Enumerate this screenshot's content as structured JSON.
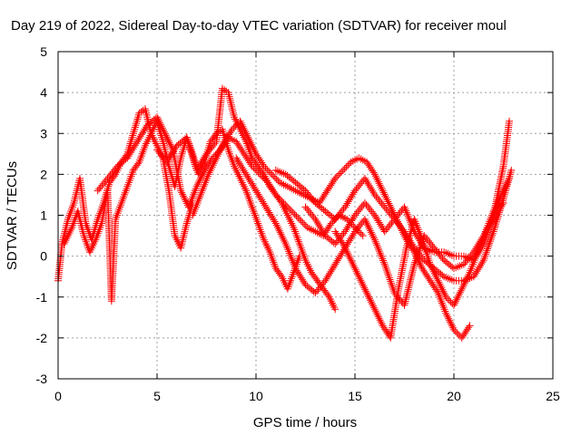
{
  "chart_data": {
    "type": "scatter",
    "title": "Day 219 of 2022, Sidereal Day-to-day VTEC variation (SDTVAR) for receiver moul",
    "xlabel": "GPS time / hours",
    "ylabel": "SDTVAR / TECUs",
    "xlim": [
      0,
      25
    ],
    "ylim": [
      -3,
      5
    ],
    "xticks": [
      "0",
      "5",
      "10",
      "15",
      "20",
      "25"
    ],
    "yticks": [
      "-3",
      "-2",
      "-1",
      "0",
      "1",
      "2",
      "3",
      "4",
      "5"
    ],
    "grid": true,
    "marker": "+",
    "series": [
      {
        "name": "track-1",
        "color": "#ff0000",
        "x": [
          0.0,
          0.2,
          0.5,
          0.8,
          1.1,
          1.4,
          1.7,
          2.0,
          2.3,
          2.6,
          2.9,
          3.2,
          3.5,
          3.8,
          4.1,
          4.4,
          4.7,
          5.0,
          5.3,
          5.6,
          5.9,
          6.2,
          6.5,
          6.8
        ],
        "y": [
          -0.6,
          0.3,
          0.9,
          1.3,
          1.9,
          0.8,
          0.4,
          0.9,
          1.3,
          1.8,
          2.0,
          2.3,
          2.5,
          3.0,
          3.5,
          3.6,
          3.0,
          2.7,
          2.4,
          1.6,
          0.5,
          0.2,
          0.8,
          1.3
        ]
      },
      {
        "name": "track-2",
        "color": "#ff0000",
        "x": [
          0.3,
          0.7,
          1.0,
          1.3,
          1.6,
          1.9,
          2.2,
          2.5,
          2.7,
          2.9,
          3.2,
          3.5,
          3.8,
          4.1,
          4.4,
          4.7,
          5.0,
          5.3,
          5.6,
          5.9,
          6.2,
          6.5,
          6.8,
          7.1,
          7.4,
          7.7,
          8.0,
          8.3,
          8.6,
          8.9,
          9.2,
          9.5,
          9.8,
          10.1,
          10.4,
          10.7,
          11.0,
          11.3,
          11.6,
          11.9,
          12.2
        ],
        "y": [
          0.3,
          0.7,
          1.1,
          0.5,
          0.1,
          0.4,
          0.8,
          1.6,
          -1.1,
          0.9,
          1.3,
          1.7,
          2.1,
          2.3,
          2.7,
          3.0,
          3.3,
          2.8,
          2.2,
          1.7,
          2.4,
          2.9,
          2.5,
          2.0,
          2.3,
          2.8,
          3.0,
          3.1,
          2.6,
          2.2,
          1.9,
          1.6,
          1.2,
          0.8,
          0.4,
          0.1,
          -0.3,
          -0.5,
          -0.8,
          -0.4,
          0.0
        ]
      },
      {
        "name": "track-3",
        "color": "#ff0000",
        "x": [
          2.0,
          2.5,
          3.0,
          3.5,
          4.0,
          4.5,
          5.0,
          5.4,
          5.8,
          6.2,
          6.6,
          7.0,
          7.4,
          7.8,
          8.2,
          8.6,
          9.0,
          9.4,
          9.8,
          10.2,
          10.6,
          11.0,
          11.4,
          11.8,
          12.2,
          12.6,
          13.0,
          13.4,
          13.8,
          14.2,
          14.6,
          15.0,
          15.4
        ],
        "y": [
          1.6,
          1.9,
          2.2,
          2.4,
          2.8,
          3.2,
          3.4,
          3.0,
          2.6,
          1.6,
          1.2,
          1.7,
          2.1,
          2.4,
          2.6,
          2.9,
          2.8,
          2.5,
          2.2,
          2.0,
          1.8,
          1.5,
          1.3,
          1.1,
          0.9,
          0.7,
          0.6,
          0.5,
          0.8,
          1.0,
          0.9,
          0.7,
          0.5
        ]
      },
      {
        "name": "track-4",
        "color": "#ff0000",
        "x": [
          5.0,
          5.5,
          6.0,
          6.5,
          7.0,
          7.5,
          8.0,
          8.3,
          8.6,
          8.9,
          9.2,
          9.5,
          9.8,
          10.1,
          10.4,
          10.7,
          11.0,
          11.3,
          11.6,
          11.9,
          12.2,
          12.5,
          12.8,
          13.1,
          13.4,
          13.7,
          14.0
        ],
        "y": [
          2.6,
          2.3,
          2.7,
          2.9,
          2.1,
          2.5,
          2.8,
          4.1,
          4.0,
          3.4,
          3.1,
          2.8,
          2.4,
          2.2,
          2.0,
          1.7,
          1.5,
          1.3,
          1.0,
          0.7,
          0.3,
          -0.1,
          -0.4,
          -0.6,
          -0.8,
          -1.0,
          -1.3
        ]
      },
      {
        "name": "track-5",
        "color": "#ff0000",
        "x": [
          6.8,
          7.2,
          7.6,
          8.0,
          8.4,
          8.8,
          9.2,
          9.6,
          10.0,
          10.4,
          10.8,
          11.2,
          11.6,
          12.0,
          12.4,
          12.8,
          13.2,
          13.6,
          14.0,
          14.4,
          14.8,
          15.2,
          15.6,
          16.0,
          16.4,
          16.8,
          17.2,
          17.6,
          18.0,
          18.4,
          18.8,
          19.2,
          19.6,
          20.0,
          20.4,
          20.8
        ],
        "y": [
          1.0,
          1.5,
          2.0,
          2.4,
          2.8,
          3.1,
          3.3,
          2.9,
          2.5,
          2.2,
          2.0,
          1.8,
          1.7,
          1.6,
          1.5,
          1.4,
          1.3,
          1.6,
          1.9,
          2.1,
          2.3,
          2.4,
          2.3,
          2.0,
          1.6,
          1.2,
          0.8,
          0.4,
          0.1,
          -0.3,
          -0.6,
          -0.9,
          -1.4,
          -1.8,
          -2.0,
          -1.7
        ]
      },
      {
        "name": "track-6",
        "color": "#ff0000",
        "x": [
          11.0,
          11.5,
          12.0,
          12.5,
          13.0,
          13.5,
          14.0,
          14.5,
          15.0,
          15.5,
          16.0,
          16.5,
          17.0,
          17.5,
          18.0,
          18.5,
          19.0,
          19.5,
          20.0,
          20.5,
          21.0,
          21.5,
          22.0,
          22.5,
          22.9
        ],
        "y": [
          2.1,
          2.0,
          1.8,
          1.6,
          1.3,
          1.1,
          0.9,
          1.2,
          1.6,
          1.9,
          1.5,
          1.2,
          0.9,
          0.6,
          0.2,
          -0.1,
          -0.3,
          -0.5,
          -0.6,
          -0.6,
          -0.5,
          -0.1,
          0.6,
          1.4,
          2.1
        ]
      },
      {
        "name": "track-7",
        "color": "#ff0000",
        "x": [
          12.5,
          13.0,
          13.5,
          14.0,
          14.5,
          15.0,
          15.5,
          16.0,
          16.5,
          17.0,
          17.5,
          18.0,
          18.5,
          19.0,
          19.5,
          20.0,
          20.5,
          21.0,
          21.5,
          22.0,
          22.5,
          22.8
        ],
        "y": [
          1.2,
          0.9,
          0.5,
          0.3,
          0.6,
          1.0,
          1.3,
          1.0,
          0.6,
          0.9,
          1.2,
          0.6,
          0.2,
          0.1,
          0.1,
          0.0,
          0.0,
          -0.1,
          0.3,
          1.0,
          2.2,
          3.3
        ]
      },
      {
        "name": "track-8",
        "color": "#ff0000",
        "x": [
          14.0,
          14.4,
          14.8,
          15.2,
          15.6,
          16.0,
          16.4,
          16.8,
          17.2,
          17.6,
          18.0,
          18.4,
          18.8,
          19.2,
          19.6,
          20.0,
          20.4,
          20.8,
          21.2,
          21.6,
          22.0,
          22.4,
          22.8
        ],
        "y": [
          0.6,
          0.3,
          -0.1,
          -0.5,
          -0.9,
          -1.3,
          -1.7,
          -2.0,
          -0.8,
          0.2,
          0.9,
          0.4,
          -0.2,
          -0.6,
          -1.0,
          -1.2,
          -0.8,
          -0.4,
          0.1,
          0.6,
          1.1,
          1.5,
          1.9
        ]
      },
      {
        "name": "track-9",
        "color": "#ff0000",
        "x": [
          9.0,
          9.5,
          10.0,
          10.5,
          11.0,
          11.5,
          12.0,
          12.5,
          13.0,
          13.5,
          14.0,
          14.5,
          15.0,
          15.5,
          16.0,
          16.5,
          17.0,
          17.5,
          18.0,
          18.5,
          19.0,
          19.5,
          20.0,
          20.5,
          21.0,
          21.5,
          22.0,
          22.5
        ],
        "y": [
          2.4,
          2.0,
          1.6,
          1.2,
          0.8,
          0.3,
          -0.3,
          -0.7,
          -0.9,
          -0.6,
          -0.2,
          0.2,
          0.6,
          0.9,
          0.4,
          -0.2,
          -0.9,
          -1.2,
          -0.2,
          0.5,
          0.2,
          -0.1,
          -0.3,
          -0.2,
          0.1,
          0.5,
          0.9,
          1.3
        ]
      }
    ]
  }
}
